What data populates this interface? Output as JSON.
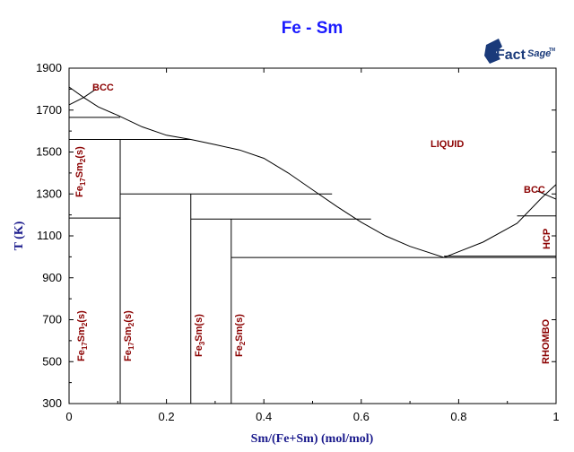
{
  "chart_data": {
    "type": "line",
    "title": "Fe - Sm",
    "xlabel": "Sm/(Fe+Sm) (mol/mol)",
    "ylabel": "T (K)",
    "xlim": [
      0,
      1
    ],
    "ylim": [
      300,
      1900
    ],
    "x_ticks": [
      "0",
      "0.2",
      "0.4",
      "0.6",
      "0.8",
      "1"
    ],
    "x_tick_values": [
      0,
      0.2,
      0.4,
      0.6,
      0.8,
      1
    ],
    "y_ticks": [
      "300",
      "500",
      "700",
      "900",
      "1100",
      "1300",
      "1500",
      "1700",
      "1900"
    ],
    "y_tick_values": [
      300,
      500,
      700,
      900,
      1100,
      1300,
      1500,
      1700,
      1900
    ],
    "liquidus": [
      {
        "x": 0,
        "y": 1810
      },
      {
        "x": 0.03,
        "y": 1760
      },
      {
        "x": 0.06,
        "y": 1715
      },
      {
        "x": 0.1,
        "y": 1675
      },
      {
        "x": 0.15,
        "y": 1620
      },
      {
        "x": 0.2,
        "y": 1580
      },
      {
        "x": 0.25,
        "y": 1560
      },
      {
        "x": 0.3,
        "y": 1535
      },
      {
        "x": 0.35,
        "y": 1510
      },
      {
        "x": 0.4,
        "y": 1470
      },
      {
        "x": 0.45,
        "y": 1400
      },
      {
        "x": 0.5,
        "y": 1320
      },
      {
        "x": 0.55,
        "y": 1240
      },
      {
        "x": 0.6,
        "y": 1165
      },
      {
        "x": 0.65,
        "y": 1100
      },
      {
        "x": 0.7,
        "y": 1050
      },
      {
        "x": 0.77,
        "y": 997
      },
      {
        "x": 0.85,
        "y": 1070
      },
      {
        "x": 0.92,
        "y": 1160
      },
      {
        "x": 0.97,
        "y": 1280
      },
      {
        "x": 1,
        "y": 1345
      }
    ],
    "bcc_fe_boundary": [
      {
        "x": 0,
        "y": 1725
      },
      {
        "x": 0.03,
        "y": 1760
      },
      {
        "x": 0.055,
        "y": 1800
      }
    ],
    "bcc_sm_boundary": [
      {
        "x": 0.96,
        "y": 1315
      },
      {
        "x": 1,
        "y": 1275
      }
    ],
    "horizontal_lines": [
      {
        "x0": 0,
        "x1": 0.105,
        "y": 1665
      },
      {
        "x0": 0,
        "x1": 0.25,
        "y": 1560
      },
      {
        "x0": 0.105,
        "x1": 0.54,
        "y": 1300
      },
      {
        "x0": 0,
        "x1": 0.105,
        "y": 1185
      },
      {
        "x0": 0.25,
        "x1": 0.62,
        "y": 1180
      },
      {
        "x0": 0.92,
        "x1": 1,
        "y": 1195
      },
      {
        "x0": 0.333,
        "x1": 1,
        "y": 997
      },
      {
        "x0": 0.77,
        "x1": 1,
        "y": 1003
      }
    ],
    "vertical_lines": [
      {
        "x": 0.105,
        "y0": 300,
        "y1": 1560
      },
      {
        "x": 0.25,
        "y0": 300,
        "y1": 1300
      },
      {
        "x": 0.333,
        "y0": 300,
        "y1": 1180
      }
    ],
    "phase_labels": [
      {
        "name": "BCC",
        "main": "BCC"
      },
      {
        "name": "LIQUID",
        "main": "LIQUID"
      },
      {
        "name": "BCC-Sm",
        "main": "BCC"
      },
      {
        "name": "HCP",
        "main": "HCP"
      },
      {
        "name": "RHOMBO",
        "main": "RHOMBO"
      },
      {
        "name": "Fe17Sm2-high",
        "parts": [
          "Fe",
          "17",
          "Sm",
          "2",
          "(s)"
        ]
      },
      {
        "name": "Fe17Sm2-low",
        "parts": [
          "Fe",
          "17",
          "Sm",
          "2",
          "(s)"
        ]
      },
      {
        "name": "Fe17Sm2-b",
        "parts": [
          "Fe",
          "17",
          "Sm",
          "2",
          "(s)"
        ]
      },
      {
        "name": "Fe3Sm",
        "parts": [
          "Fe",
          "3",
          "Sm(s)"
        ]
      },
      {
        "name": "Fe2Sm",
        "parts": [
          "Fe",
          "2",
          "Sm(s)"
        ]
      }
    ]
  },
  "logo": {
    "brand_main": "Fact",
    "brand_sub": "Sage",
    "brand_mark": "TM"
  }
}
